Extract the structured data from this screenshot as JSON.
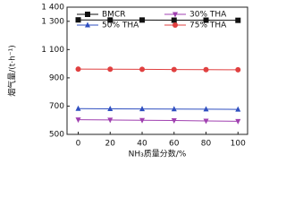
{
  "chart_data": {
    "type": "line",
    "x_label": "NH₃质量分数/%",
    "y_label": "烟气量/(t·h⁻¹)",
    "x": [
      0,
      20,
      40,
      60,
      80,
      100
    ],
    "series": [
      {
        "name": "BMCR",
        "color": "#111111",
        "marker": "square",
        "values": [
          1310,
          1309,
          1309,
          1308,
          1308,
          1307
        ]
      },
      {
        "name": "30% THA",
        "color": "#a040b0",
        "marker": "triangle-down",
        "values": [
          604,
          602,
          600,
          598,
          595,
          593
        ]
      },
      {
        "name": "50% THA",
        "color": "#2f4fc0",
        "marker": "triangle-up",
        "values": [
          682,
          681,
          680,
          679,
          678,
          677
        ]
      },
      {
        "name": "75% THA",
        "color": "#e04040",
        "marker": "circle",
        "values": [
          962,
          961,
          960,
          959,
          958,
          957
        ]
      }
    ],
    "xlim": [
      -7,
      106
    ],
    "xticks": [
      0,
      20,
      40,
      60,
      80,
      100
    ],
    "ylim": [
      500,
      1400
    ],
    "yticks": [
      500,
      700,
      900,
      {
        "value": 1100,
        "label": "1 100"
      },
      {
        "value": 1300,
        "label": "1 300"
      },
      {
        "value": 1400,
        "label": "1 400"
      }
    ]
  }
}
